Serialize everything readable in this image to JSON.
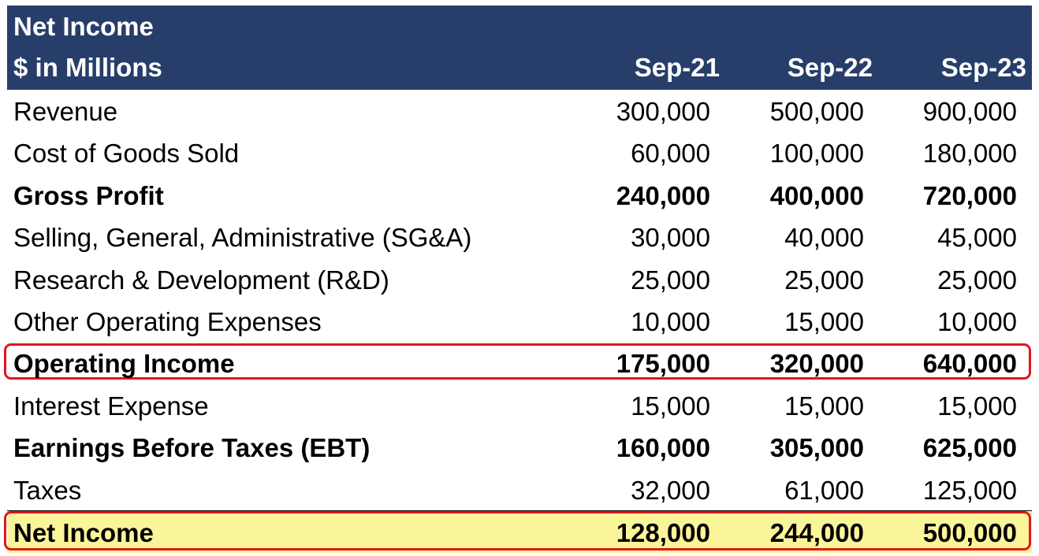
{
  "header": {
    "title": "Net Income",
    "subtitle": "$ in Millions",
    "columns": [
      "Sep-21",
      "Sep-22",
      "Sep-23"
    ]
  },
  "rows": [
    {
      "label": "Revenue",
      "values": [
        "300,000",
        "500,000",
        "900,000"
      ]
    },
    {
      "label": "Cost of Goods Sold",
      "values": [
        "60,000",
        "100,000",
        "180,000"
      ]
    },
    {
      "label": "Gross Profit",
      "values": [
        "240,000",
        "400,000",
        "720,000"
      ]
    },
    {
      "label": "Selling, General, Administrative (SG&A)",
      "values": [
        "30,000",
        "40,000",
        "45,000"
      ]
    },
    {
      "label": "Research & Development (R&D)",
      "values": [
        "25,000",
        "25,000",
        "25,000"
      ]
    },
    {
      "label": "Other Operating Expenses",
      "values": [
        "10,000",
        "15,000",
        "10,000"
      ]
    },
    {
      "label": "Operating Income",
      "values": [
        "175,000",
        "320,000",
        "640,000"
      ]
    },
    {
      "label": "Interest Expense",
      "values": [
        "15,000",
        "15,000",
        "15,000"
      ]
    },
    {
      "label": "Earnings Before Taxes (EBT)",
      "values": [
        "160,000",
        "305,000",
        "625,000"
      ]
    },
    {
      "label": "Taxes",
      "values": [
        "32,000",
        "61,000",
        "125,000"
      ]
    },
    {
      "label": "Net Income",
      "values": [
        "128,000",
        "244,000",
        "500,000"
      ]
    }
  ],
  "colors": {
    "header_bg": "#283e6a",
    "highlight_border": "#e0161e",
    "total_bg": "#fbf59a"
  }
}
